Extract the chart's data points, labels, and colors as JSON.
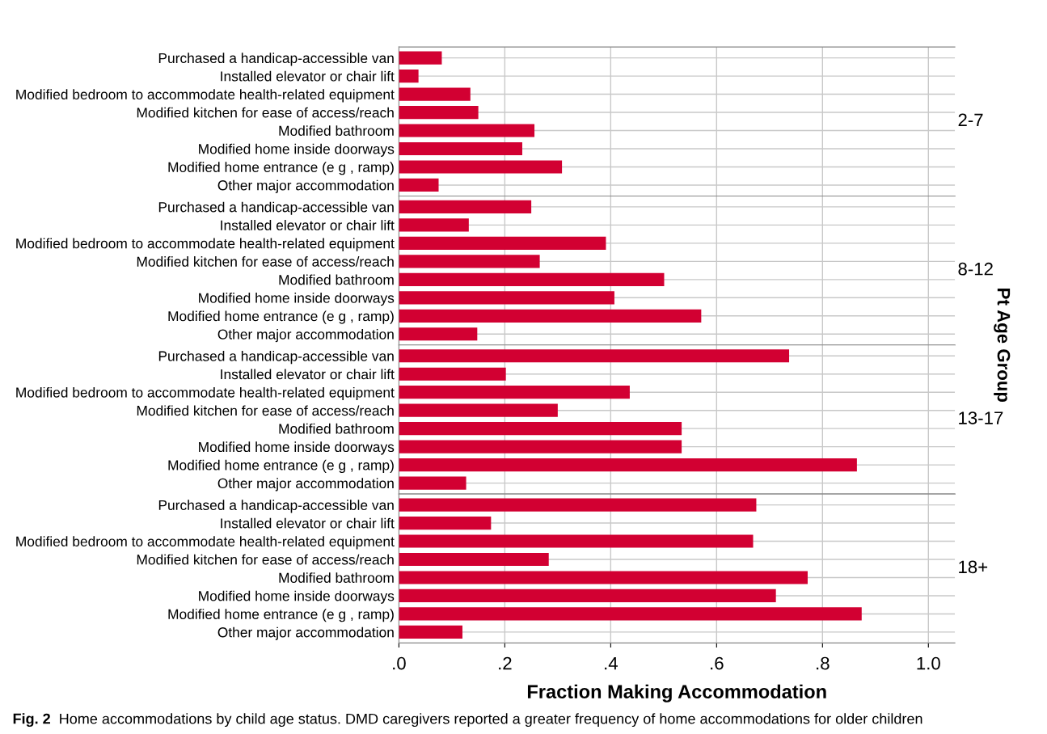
{
  "chart_data": [
    {
      "type": "bar",
      "orientation": "horizontal",
      "y2label": "2-7",
      "categories": [
        "Purchased a handicap-accessible van",
        "Installed elevator or chair lift",
        "Modified bedroom to accommodate health-related equipment",
        "Modified kitchen for ease of access/reach",
        "Modified bathroom",
        "Modified home inside doorways",
        "Modified home entrance (e g , ramp)",
        "Other major accommodation"
      ],
      "values": [
        0.081,
        0.037,
        0.135,
        0.15,
        0.256,
        0.233,
        0.308,
        0.075
      ],
      "color": "#d20032",
      "xlim": [
        0,
        1.05
      ],
      "grid": true,
      "tick_labels": "y"
    },
    {
      "type": "bar",
      "orientation": "horizontal",
      "y2label": "8-12",
      "ylabel": "Pt Age Group",
      "categories": [
        "Purchased a handicap-accessible van",
        "Installed elevator or chair lift",
        "Modified bedroom to accommodate health-related equipment",
        "Modified kitchen for ease of access/reach",
        "Modified bathroom",
        "Modified home inside doorways",
        "Modified home entrance (e g , ramp)",
        "Other major accommodation"
      ],
      "values": [
        0.25,
        0.132,
        0.391,
        0.266,
        0.501,
        0.407,
        0.571,
        0.148
      ],
      "color": "#d20032",
      "xlim": [
        0,
        1.05
      ],
      "grid": true,
      "tick_labels": "y"
    },
    {
      "type": "bar",
      "orientation": "horizontal",
      "y2label": "13-17",
      "categories": [
        "Purchased a handicap-accessible van",
        "Installed elevator or chair lift",
        "Modified bedroom to accommodate health-related equipment",
        "Modified kitchen for ease of access/reach",
        "Modified bathroom",
        "Modified home inside doorways",
        "Modified home entrance (e g , ramp)",
        "Other major accommodation"
      ],
      "values": [
        0.737,
        0.202,
        0.436,
        0.3,
        0.534,
        0.534,
        0.865,
        0.127
      ],
      "color": "#d20032",
      "xlim": [
        0,
        1.05
      ],
      "grid": true,
      "tick_labels": "y"
    },
    {
      "type": "bar",
      "orientation": "horizontal",
      "y2label": "18+",
      "xlabel": "Fraction Making Accommodation",
      "categories": [
        "Purchased a handicap-accessible van",
        "Installed elevator or chair lift",
        "Modified bedroom to accommodate health-related equipment",
        "Modified kitchen for ease of access/reach",
        "Modified bathroom",
        "Modified home inside doorways",
        "Modified home entrance (e g , ramp)",
        "Other major accommodation"
      ],
      "values": [
        0.675,
        0.174,
        0.669,
        0.283,
        0.772,
        0.712,
        0.874,
        0.12
      ],
      "color": "#d20032",
      "xlim": [
        0,
        1.05
      ],
      "xticks": [
        {
          "value": 0,
          "label": ".0"
        },
        {
          "value": 0.2,
          "label": ".2"
        },
        {
          "value": 0.4,
          "label": ".4"
        },
        {
          "value": 0.6,
          "label": ".6"
        },
        {
          "value": 0.8,
          "label": ".8"
        },
        {
          "value": 1.0,
          "label": "1.0"
        }
      ],
      "grid": true,
      "annotations": [
        "Fig. 2",
        "Home accommodations by child age status. DMD caregivers reported a greater frequency of home accommodations for older children"
      ]
    }
  ]
}
